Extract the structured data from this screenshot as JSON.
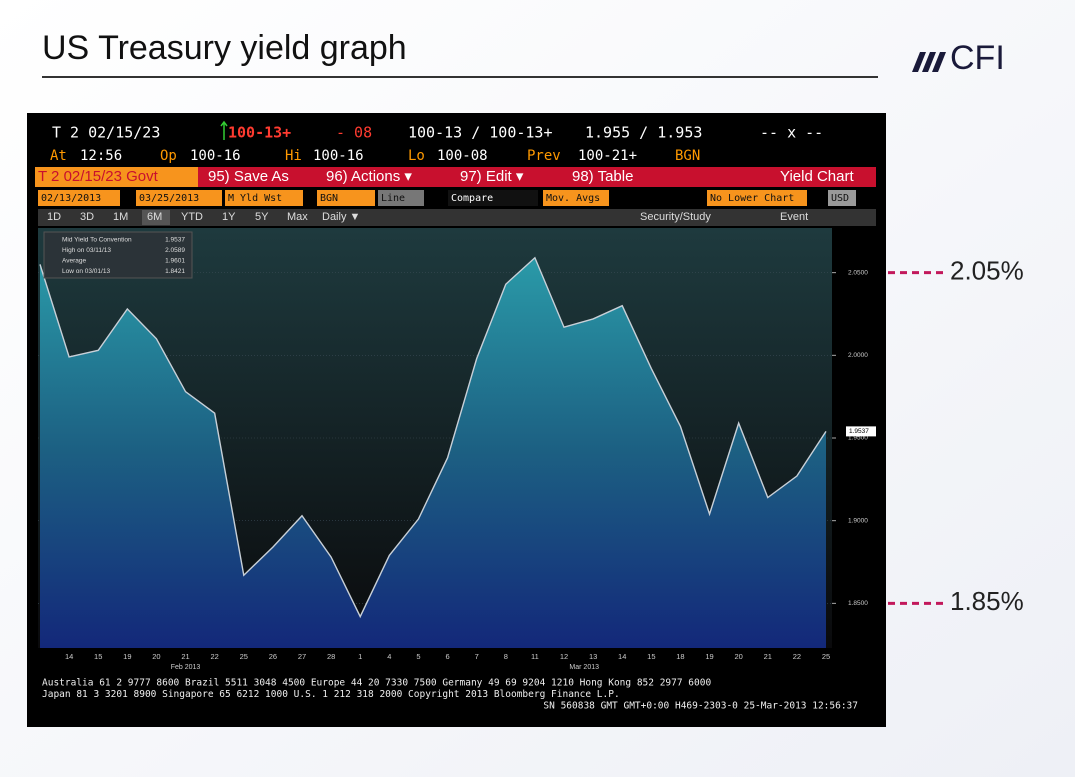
{
  "slide": {
    "title": "US Treasury yield graph",
    "logo": "CFI",
    "annotations": [
      "2.05%",
      "1.85%"
    ]
  },
  "terminal": {
    "quote": [
      "T 2 02/15/23",
      "100-13+",
      "- 08",
      "100-13 / 100-13+",
      "1.955 / 1.953",
      "-- x --"
    ],
    "stats": [
      [
        "At",
        "12:56"
      ],
      [
        "Op",
        "100-16"
      ],
      [
        "Hi",
        "100-16"
      ],
      [
        "Lo",
        "100-08"
      ],
      [
        "Prev",
        "100-21+"
      ],
      [
        "BGN",
        ""
      ]
    ],
    "toolbar": [
      "T 2 02/15/23 Govt",
      "95) Save As",
      "96) Actions ▾",
      "97) Edit ▾",
      "98) Table",
      "Yield Chart"
    ],
    "controls": [
      "02/13/2013",
      "03/25/2013",
      "M Yld Wst",
      "BGN",
      "Line",
      "Compare",
      "Mov. Avgs",
      "No Lower Chart",
      "USD"
    ],
    "ranges": [
      "1D",
      "3D",
      "1M",
      "6M",
      "YTD",
      "1Y",
      "5Y",
      "Max",
      "Daily ▼",
      "Security/Study",
      "Event"
    ],
    "footer": [
      "Australia 61 2 9777 8600 Brazil 5511 3048 4500 Europe 44 20 7330 7500 Germany 49 69 9204 1210 Hong Kong 852 2977 6000",
      "Japan 81 3 3201 8900      Singapore 65 6212 1000      U.S. 1 212 318 2000       Copyright 2013 Bloomberg Finance L.P.",
      "SN 560838 GMT  GMT+0:00 H469-2303-0 25-Mar-2013 12:56:37"
    ]
  },
  "chart_data": {
    "type": "area",
    "categories": [
      null,
      "14",
      "15",
      "19",
      "20",
      "21",
      "22",
      "25",
      "26",
      "27",
      "28",
      "1",
      "4",
      "5",
      "6",
      "7",
      "8",
      "11",
      "12",
      "13",
      "14",
      "15",
      "18",
      "19",
      "20",
      "21",
      "22",
      "25"
    ],
    "months": [
      "Feb 2013",
      "Mar 2013"
    ],
    "values": [
      2.055,
      1.999,
      2.003,
      2.028,
      2.01,
      1.978,
      1.965,
      1.867,
      1.884,
      1.903,
      1.878,
      1.842,
      1.879,
      1.901,
      1.938,
      1.998,
      2.043,
      2.059,
      2.017,
      2.022,
      2.03,
      1.992,
      1.957,
      1.904,
      1.959,
      1.914,
      1.927,
      1.954
    ],
    "color": "#c8d0d8",
    "ylim": [
      1.823,
      2.077
    ],
    "yticks": [
      {
        "value": 1.85,
        "label": "1.8500"
      },
      {
        "value": 1.9,
        "label": "1.9000"
      },
      {
        "value": 1.95,
        "label": "1.9500"
      },
      {
        "value": 2.0,
        "label": "2.0000"
      },
      {
        "value": 2.05,
        "label": "2.0500"
      }
    ],
    "grid": true,
    "legend": [
      [
        "Mid Yield To Convention",
        "1.9537"
      ],
      [
        "High on 03/11/13",
        "2.0589"
      ],
      [
        "Average",
        "1.9601"
      ],
      [
        "Low on 03/01/13",
        "1.8421"
      ]
    ]
  }
}
